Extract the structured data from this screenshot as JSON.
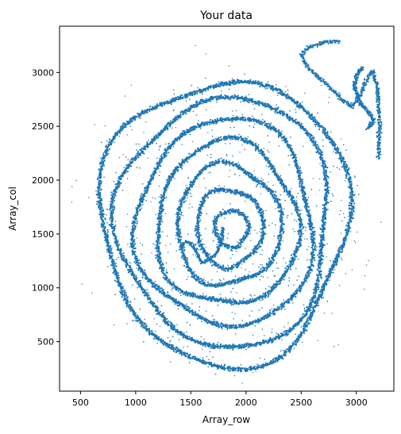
{
  "chart_data": {
    "type": "scatter",
    "title": "Your data",
    "xlabel": "Array_row",
    "ylabel": "Array_col",
    "xlim": [
      310,
      3340
    ],
    "ylim": [
      40,
      3430
    ],
    "xticks": [
      500,
      1000,
      1500,
      2000,
      2500,
      3000
    ],
    "yticks": [
      500,
      1000,
      1500,
      2000,
      2500,
      3000
    ],
    "grid": false,
    "marker_color": "#1f77b4",
    "description_shape": "spiral / concentric loops",
    "rings": [
      {
        "cx": 1870,
        "cy": 1550,
        "rx": 150,
        "ry": 170
      },
      {
        "cx": 1850,
        "cy": 1560,
        "rx": 300,
        "ry": 360
      },
      {
        "cx": 1840,
        "cy": 1580,
        "rx": 470,
        "ry": 560
      },
      {
        "cx": 1830,
        "cy": 1590,
        "rx": 640,
        "ry": 760
      },
      {
        "cx": 1820,
        "cy": 1600,
        "rx": 800,
        "ry": 960
      },
      {
        "cx": 1815,
        "cy": 1610,
        "rx": 960,
        "ry": 1160
      },
      {
        "cx": 1810,
        "cy": 1620,
        "rx": 1120,
        "ry": 1320
      }
    ],
    "outer_track": [
      [
        2850,
        3290
      ],
      [
        2700,
        3280
      ],
      [
        2560,
        3230
      ],
      [
        2500,
        3160
      ],
      [
        2560,
        3050
      ],
      [
        2720,
        2900
      ],
      [
        2860,
        2760
      ],
      [
        2960,
        2680
      ],
      [
        3020,
        2760
      ],
      [
        3090,
        2930
      ],
      [
        3150,
        3020
      ],
      [
        3190,
        2860
      ],
      [
        3210,
        2540
      ],
      [
        3200,
        2200
      ]
    ],
    "inner_hook": [
      [
        3050,
        3050
      ],
      [
        3010,
        2980
      ],
      [
        2980,
        2880
      ],
      [
        3030,
        2720
      ],
      [
        3120,
        2620
      ],
      [
        3160,
        2560
      ],
      [
        3100,
        2470
      ]
    ],
    "center_blob": [
      [
        1410,
        1380
      ],
      [
        1460,
        1430
      ],
      [
        1520,
        1400
      ],
      [
        1600,
        1230
      ],
      [
        1720,
        1300
      ],
      [
        1780,
        1420
      ],
      [
        1790,
        1560
      ]
    ]
  }
}
